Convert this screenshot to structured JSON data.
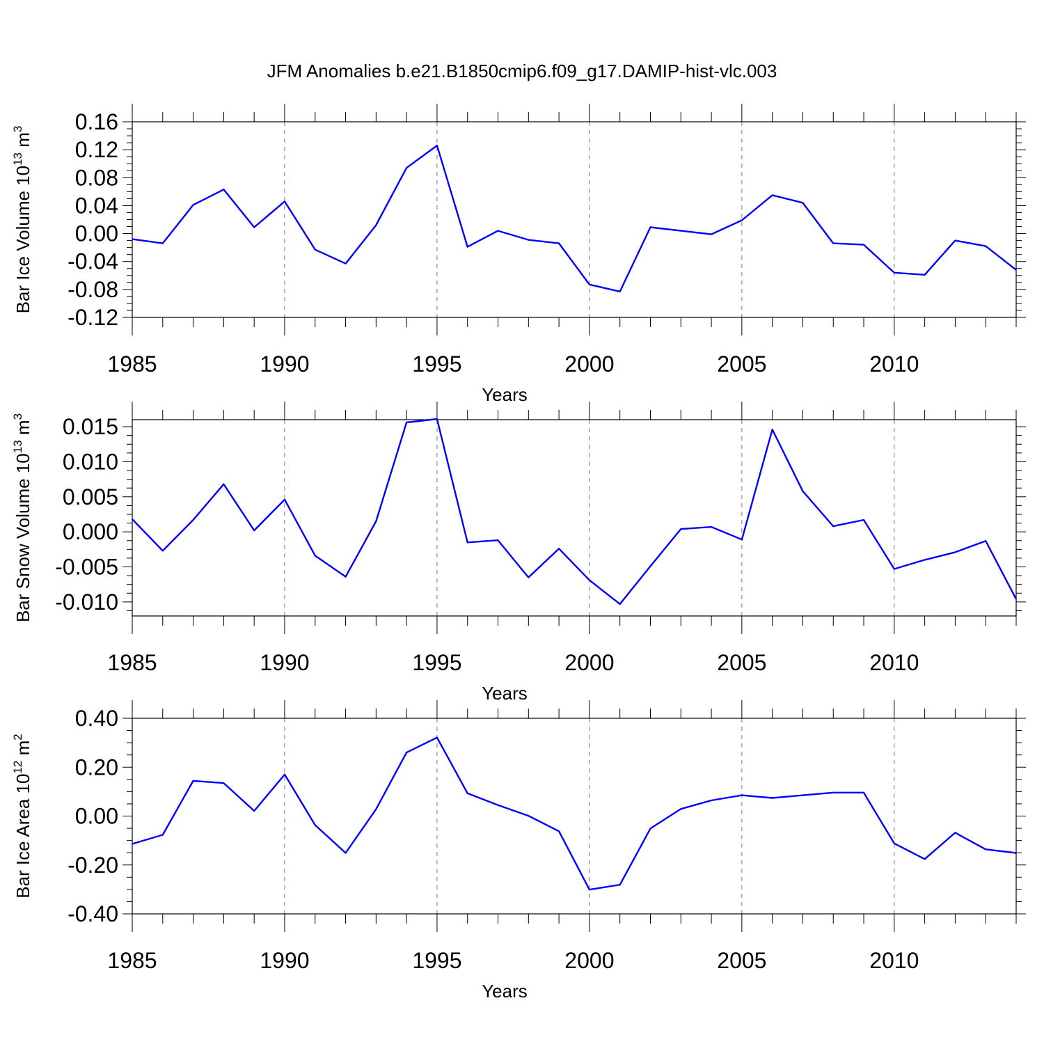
{
  "title": "JFM Anomalies b.e21.B1850cmip6.f09_g17.DAMIP-hist-vlc.003",
  "series_color": "#0000ff",
  "chart_data": [
    {
      "type": "line",
      "ylabel": "Bar Ice Volume 10",
      "ylabel_exp": "13",
      "ylabel_unit": " m",
      "ylabel_unit_exp": "3",
      "xlabel": "Years",
      "xlim": [
        1985,
        2014
      ],
      "ylim": [
        -0.12,
        0.16
      ],
      "grid": "vertical dashed at major x ticks",
      "xticks": [
        "1985",
        "1990",
        "1995",
        "2000",
        "2005",
        "2010"
      ],
      "yticks": [
        "0.16",
        "0.12",
        "0.08",
        "0.04",
        "0.00",
        "-0.04",
        "-0.08",
        "-0.12"
      ],
      "x": [
        1985,
        1986,
        1987,
        1988,
        1989,
        1990,
        1991,
        1992,
        1993,
        1994,
        1995,
        1996,
        1997,
        1998,
        1999,
        2000,
        2001,
        2002,
        2003,
        2004,
        2005,
        2006,
        2007,
        2008,
        2009,
        2010,
        2011,
        2012,
        2013,
        2014
      ],
      "values": [
        -0.008,
        -0.014,
        0.041,
        0.063,
        0.009,
        0.046,
        -0.023,
        -0.043,
        0.012,
        0.094,
        0.126,
        -0.019,
        0.004,
        -0.009,
        -0.014,
        -0.073,
        -0.083,
        0.009,
        0.004,
        -0.001,
        0.019,
        0.055,
        0.044,
        -0.014,
        -0.016,
        -0.056,
        -0.059,
        -0.01,
        -0.018,
        -0.052
      ]
    },
    {
      "type": "line",
      "ylabel": "Bar Snow Volume 10",
      "ylabel_exp": "13",
      "ylabel_unit": " m",
      "ylabel_unit_exp": "3",
      "xlabel": "Years",
      "xlim": [
        1985,
        2014
      ],
      "ylim": [
        -0.012,
        0.016
      ],
      "grid": "vertical dashed at major x ticks",
      "xticks": [
        "1985",
        "1990",
        "1995",
        "2000",
        "2005",
        "2010"
      ],
      "yticks": [
        "0.015",
        "0.010",
        "0.005",
        "0.000",
        "-0.005",
        "-0.010"
      ],
      "x": [
        1985,
        1986,
        1987,
        1988,
        1989,
        1990,
        1991,
        1992,
        1993,
        1994,
        1995,
        1996,
        1997,
        1998,
        1999,
        2000,
        2001,
        2002,
        2003,
        2004,
        2005,
        2006,
        2007,
        2008,
        2009,
        2010,
        2011,
        2012,
        2013,
        2014
      ],
      "values": [
        0.0018,
        -0.0027,
        0.0017,
        0.0068,
        0.0002,
        0.0046,
        -0.0034,
        -0.0064,
        0.0015,
        0.0156,
        0.0161,
        -0.0015,
        -0.0012,
        -0.0065,
        -0.0024,
        -0.0069,
        -0.0103,
        -0.0049,
        0.0004,
        0.0007,
        -0.0011,
        0.0146,
        0.0058,
        0.0008,
        0.0017,
        -0.0053,
        -0.004,
        -0.0029,
        -0.0013,
        -0.0096
      ]
    },
    {
      "type": "line",
      "ylabel": "Bar Ice Area 10",
      "ylabel_exp": "12",
      "ylabel_unit": " m",
      "ylabel_unit_exp": "2",
      "xlabel": "Years",
      "xlim": [
        1985,
        2014
      ],
      "ylim": [
        -0.4,
        0.4
      ],
      "grid": "vertical dashed at major x ticks",
      "xticks": [
        "1985",
        "1990",
        "1995",
        "2000",
        "2005",
        "2010"
      ],
      "yticks": [
        "0.40",
        "0.20",
        "0.00",
        "-0.20",
        "-0.40"
      ],
      "x": [
        1985,
        1986,
        1987,
        1988,
        1989,
        1990,
        1991,
        1992,
        1993,
        1994,
        1995,
        1996,
        1997,
        1998,
        1999,
        2000,
        2001,
        2002,
        2003,
        2004,
        2005,
        2006,
        2007,
        2008,
        2009,
        2010,
        2011,
        2012,
        2013,
        2014
      ],
      "values": [
        -0.114,
        -0.077,
        0.144,
        0.135,
        0.021,
        0.17,
        -0.037,
        -0.151,
        0.028,
        0.26,
        0.321,
        0.093,
        0.045,
        0.001,
        -0.062,
        -0.301,
        -0.281,
        -0.051,
        0.029,
        0.064,
        0.085,
        0.074,
        0.085,
        0.096,
        0.096,
        -0.112,
        -0.176,
        -0.068,
        -0.136,
        -0.151
      ]
    }
  ]
}
